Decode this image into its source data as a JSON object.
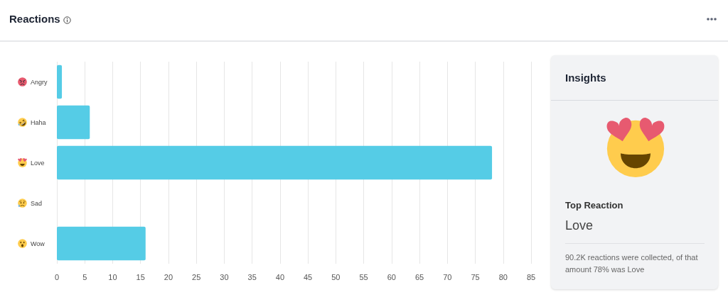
{
  "chart_data": [
    {
      "type": "bar",
      "title": "Reactions",
      "orientation": "horizontal",
      "categories": [
        "Angry",
        "Haha",
        "Love",
        "Sad",
        "Wow"
      ],
      "values": [
        0.9,
        5.9,
        78,
        0,
        15.9
      ],
      "color": "#55cce6",
      "xlim": [
        0,
        85
      ],
      "xticks": [
        0,
        5,
        10,
        15,
        20,
        25,
        30,
        35,
        40,
        45,
        50,
        55,
        60,
        65,
        70,
        75,
        80,
        85
      ],
      "grid": "x"
    },
    {
      "type": "other",
      "title": "Insights",
      "annotations": [
        "Top Reaction",
        "Love",
        "90.2K reactions were collected, of that amount 78% was Love"
      ]
    }
  ]
}
